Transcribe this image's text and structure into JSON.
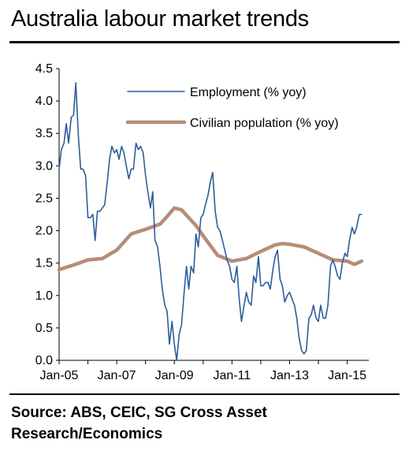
{
  "title": "Australia labour market trends",
  "source": "Source: ABS, CEIC, SG Cross Asset Research/Economics",
  "chart_data": {
    "type": "line",
    "title": "Australia labour market trends",
    "xlabel": "",
    "ylabel": "",
    "ylim": [
      0,
      4.5
    ],
    "yticks": [
      "0.0",
      "0.5",
      "1.0",
      "1.5",
      "2.0",
      "2.5",
      "3.0",
      "3.5",
      "4.0",
      "4.5"
    ],
    "xlim": [
      2005.0,
      2015.75
    ],
    "xtick_labels": [
      "Jan-05",
      "Jan-07",
      "Jan-09",
      "Jan-11",
      "Jan-13",
      "Jan-15"
    ],
    "grid": false,
    "legend_position": "top-right",
    "series": [
      {
        "name": "Employment (% yoy)",
        "color": "#2c5d9b",
        "x": [
          2005.0,
          2005.08,
          2005.17,
          2005.25,
          2005.33,
          2005.42,
          2005.5,
          2005.58,
          2005.67,
          2005.75,
          2005.83,
          2005.92,
          2006.0,
          2006.08,
          2006.17,
          2006.25,
          2006.33,
          2006.42,
          2006.5,
          2006.58,
          2006.67,
          2006.75,
          2006.83,
          2006.92,
          2007.0,
          2007.08,
          2007.17,
          2007.25,
          2007.33,
          2007.42,
          2007.5,
          2007.58,
          2007.67,
          2007.75,
          2007.83,
          2007.92,
          2008.0,
          2008.08,
          2008.17,
          2008.25,
          2008.33,
          2008.42,
          2008.5,
          2008.58,
          2008.67,
          2008.75,
          2008.83,
          2008.92,
          2009.0,
          2009.08,
          2009.17,
          2009.25,
          2009.33,
          2009.42,
          2009.5,
          2009.58,
          2009.67,
          2009.75,
          2009.83,
          2009.92,
          2010.0,
          2010.08,
          2010.17,
          2010.25,
          2010.33,
          2010.42,
          2010.5,
          2010.58,
          2010.67,
          2010.75,
          2010.83,
          2010.92,
          2011.0,
          2011.08,
          2011.17,
          2011.25,
          2011.33,
          2011.42,
          2011.5,
          2011.58,
          2011.67,
          2011.75,
          2011.83,
          2011.92,
          2012.0,
          2012.08,
          2012.17,
          2012.25,
          2012.33,
          2012.42,
          2012.5,
          2012.58,
          2012.67,
          2012.75,
          2012.83,
          2012.92,
          2013.0,
          2013.08,
          2013.17,
          2013.25,
          2013.33,
          2013.42,
          2013.5,
          2013.58,
          2013.67,
          2013.75,
          2013.83,
          2013.92,
          2014.0,
          2014.08,
          2014.17,
          2014.25,
          2014.33,
          2014.42,
          2014.5,
          2014.58,
          2014.67,
          2014.75,
          2014.83,
          2014.92,
          2015.0,
          2015.08,
          2015.17,
          2015.25,
          2015.33,
          2015.42,
          2015.5
        ],
        "values": [
          2.95,
          3.25,
          3.35,
          3.65,
          3.35,
          3.75,
          3.78,
          4.28,
          3.45,
          2.95,
          2.95,
          2.85,
          2.2,
          2.2,
          2.25,
          1.85,
          2.3,
          2.3,
          2.35,
          2.4,
          2.75,
          3.1,
          3.3,
          3.2,
          3.25,
          3.1,
          3.3,
          3.2,
          3.0,
          2.8,
          2.95,
          2.95,
          3.35,
          3.25,
          3.3,
          3.2,
          2.85,
          2.6,
          2.35,
          2.6,
          1.85,
          1.75,
          1.45,
          1.1,
          0.85,
          0.75,
          0.25,
          0.6,
          0.25,
          0.0,
          0.4,
          0.55,
          1.0,
          1.45,
          1.1,
          1.45,
          1.35,
          1.95,
          1.75,
          2.2,
          2.25,
          2.4,
          2.55,
          2.75,
          2.9,
          2.3,
          2.05,
          2.0,
          1.85,
          1.7,
          1.55,
          1.45,
          1.25,
          1.2,
          1.45,
          0.95,
          0.6,
          0.85,
          1.05,
          0.9,
          0.85,
          1.3,
          1.2,
          1.6,
          1.15,
          1.15,
          1.2,
          1.2,
          1.1,
          1.4,
          1.6,
          1.7,
          1.25,
          1.15,
          0.9,
          1.0,
          1.05,
          0.95,
          0.85,
          0.65,
          0.35,
          0.15,
          0.1,
          0.15,
          0.65,
          0.7,
          0.85,
          0.65,
          0.6,
          0.85,
          0.65,
          0.65,
          0.85,
          1.45,
          1.55,
          1.45,
          1.3,
          1.25,
          1.5,
          1.65,
          1.6,
          1.85,
          2.05,
          1.95,
          2.05,
          2.25,
          2.25
        ]
      },
      {
        "name": "Civilian population (% yoy)",
        "color": "#b58d78",
        "x": [
          2005.0,
          2005.5,
          2006.0,
          2006.5,
          2007.0,
          2007.5,
          2008.0,
          2008.5,
          2008.75,
          2009.0,
          2009.25,
          2009.5,
          2009.75,
          2010.0,
          2010.5,
          2011.0,
          2011.5,
          2012.0,
          2012.5,
          2012.75,
          2013.0,
          2013.5,
          2014.0,
          2014.5,
          2014.75,
          2015.0,
          2015.25,
          2015.5
        ],
        "values": [
          1.4,
          1.47,
          1.55,
          1.57,
          1.7,
          1.95,
          2.02,
          2.1,
          2.22,
          2.35,
          2.32,
          2.2,
          2.08,
          1.92,
          1.62,
          1.53,
          1.57,
          1.68,
          1.78,
          1.8,
          1.79,
          1.75,
          1.65,
          1.55,
          1.54,
          1.53,
          1.48,
          1.53
        ]
      }
    ]
  }
}
